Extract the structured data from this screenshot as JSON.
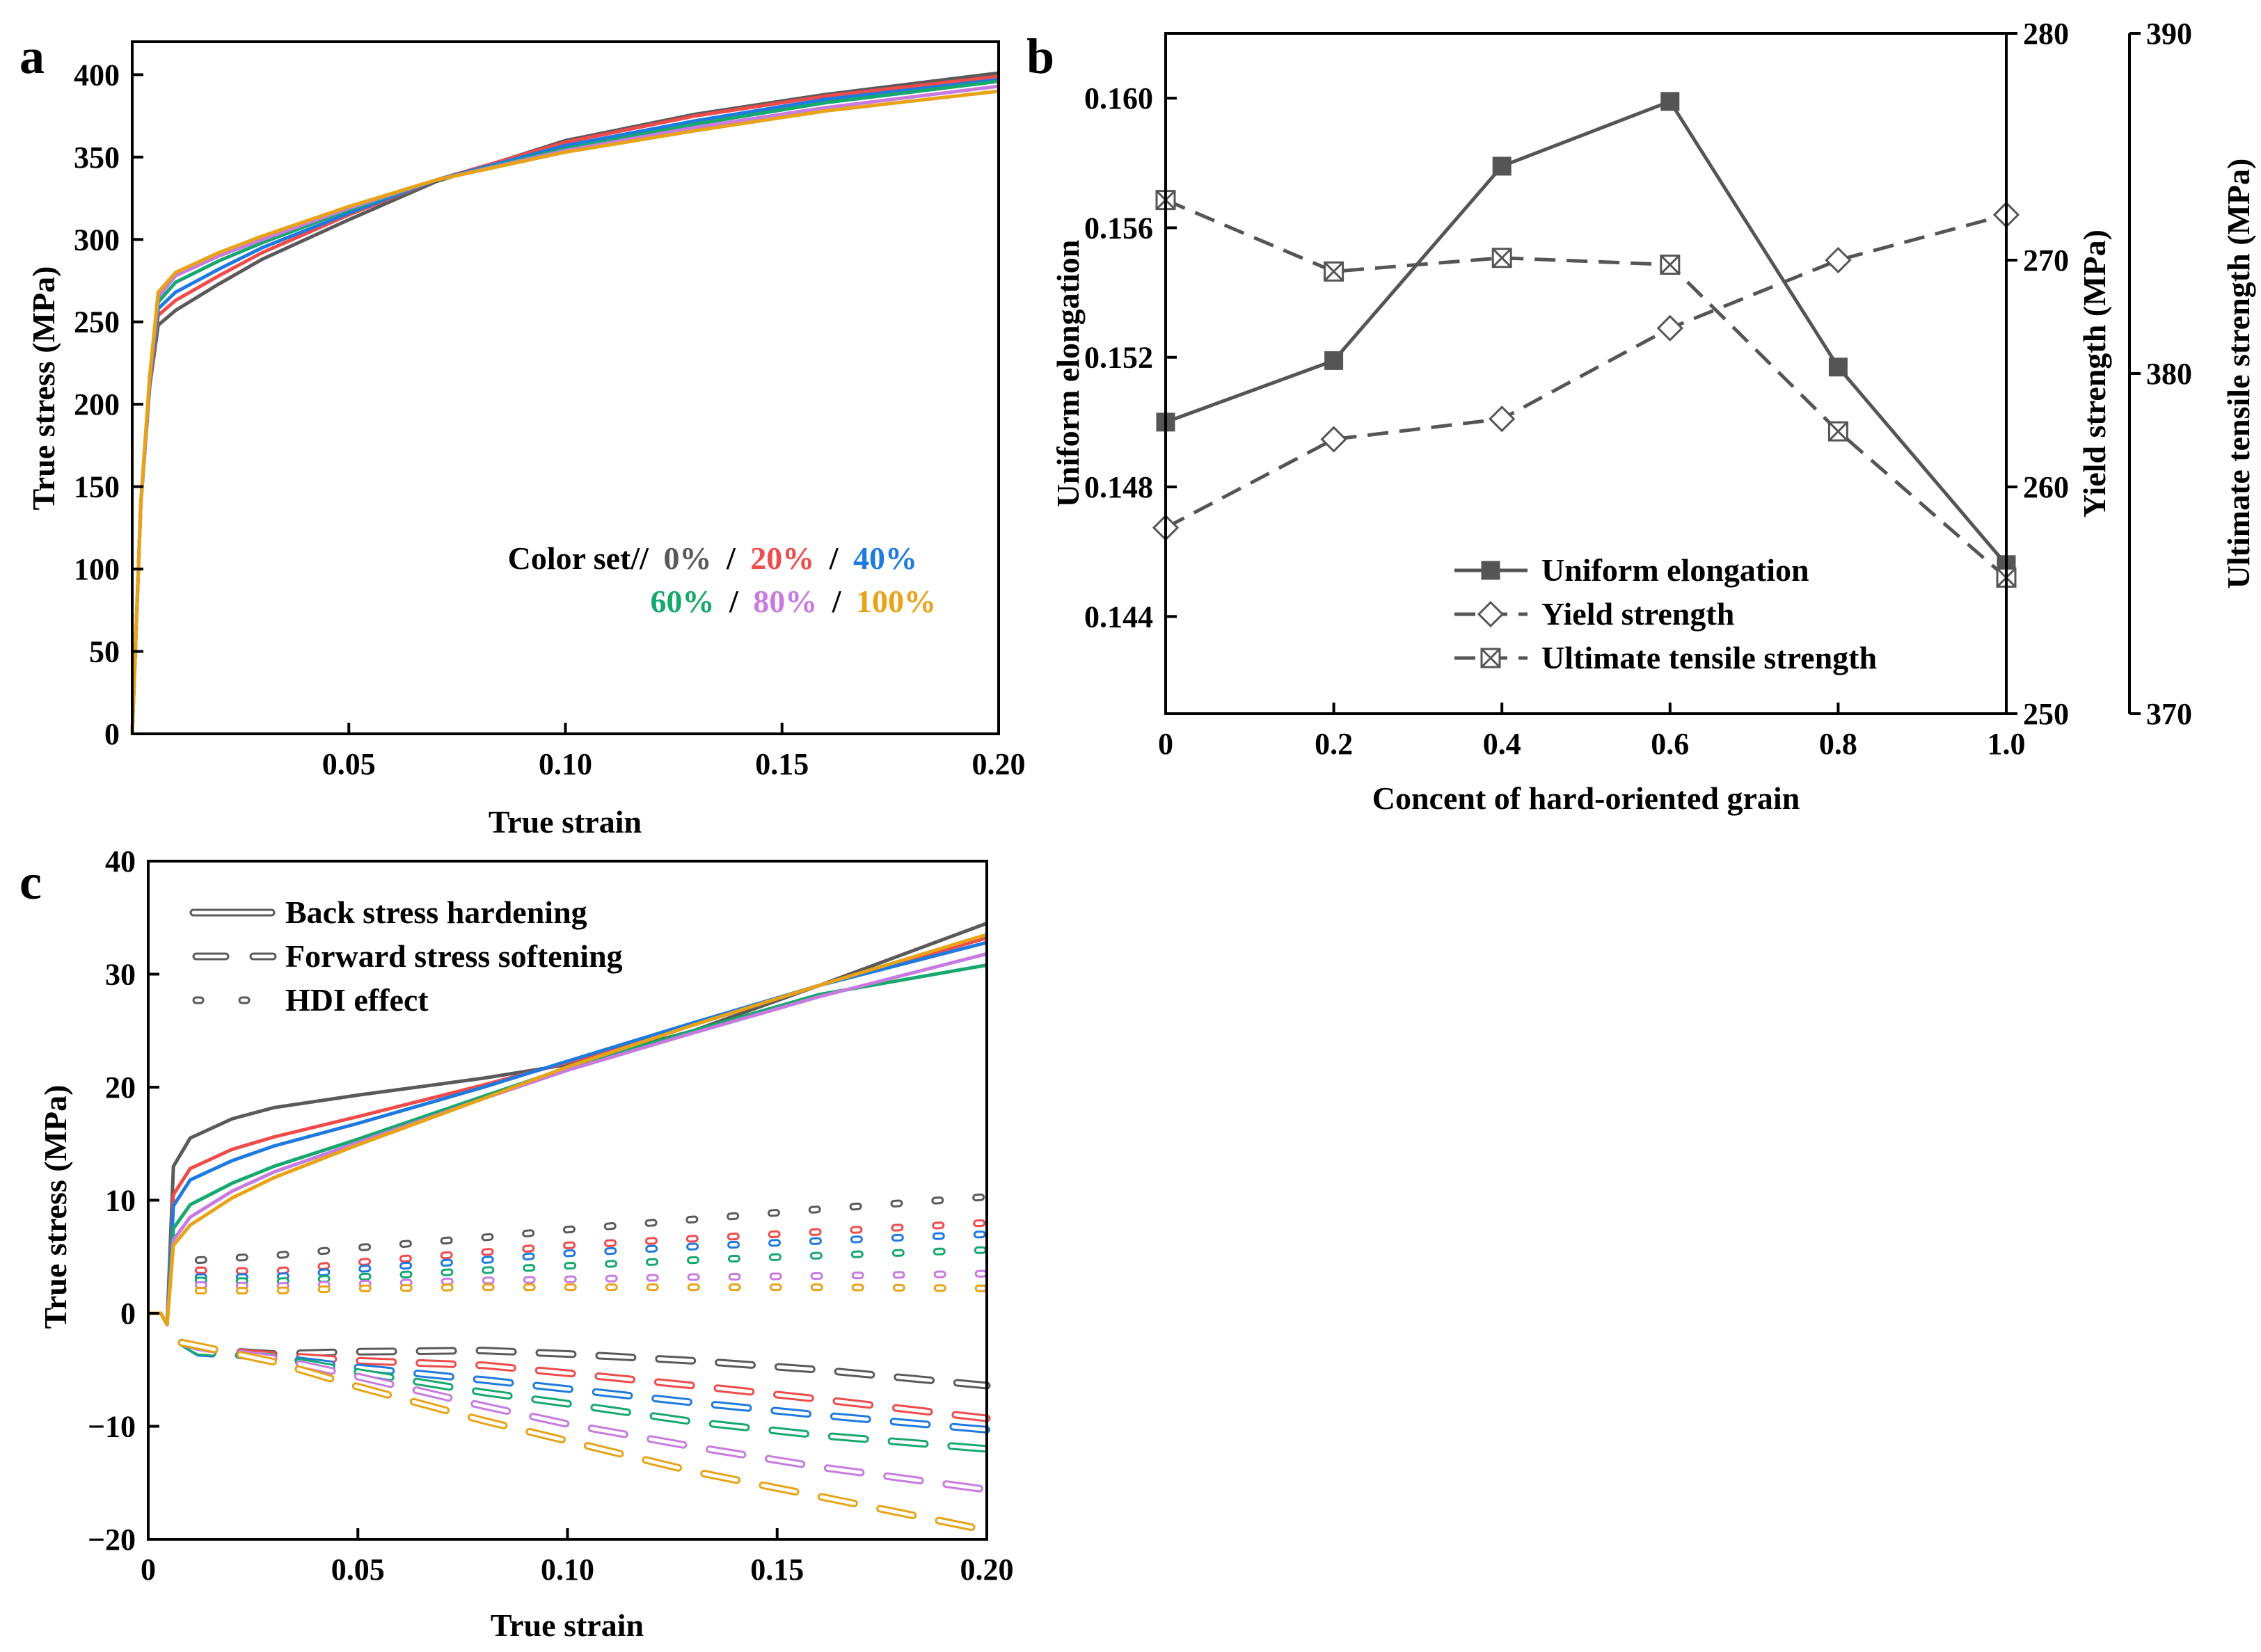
{
  "panels": {
    "a": {
      "letter": "a",
      "legend_prefix": "Color set//",
      "legend_sep": "/"
    },
    "b": {
      "letter": "b"
    },
    "c": {
      "letter": "c"
    }
  },
  "colors": {
    "0%": "#5a5a5a",
    "20%": "#ef4b4b",
    "40%": "#1f7ae0",
    "60%": "#17a86e",
    "80%": "#c77be0",
    "100%": "#e8a317",
    "gray": "#555555"
  },
  "chart_data": [
    {
      "id": "a",
      "type": "line",
      "xlabel": "True strain",
      "ylabel": "True stress (MPa)",
      "xlim": [
        0,
        0.2
      ],
      "ylim": [
        0,
        420
      ],
      "xticks": [
        "0.05",
        "0.10",
        "0.15",
        "0.20"
      ],
      "xtick_values": [
        0.05,
        0.1,
        0.15,
        0.2
      ],
      "yticks": [
        "0",
        "50",
        "100",
        "150",
        "200",
        "250",
        "300",
        "350",
        "400"
      ],
      "ytick_values": [
        0,
        50,
        100,
        150,
        200,
        250,
        300,
        350,
        400
      ],
      "series": [
        {
          "name": "0%",
          "x": [
            0,
            0.002,
            0.004,
            0.006,
            0.01,
            0.02,
            0.03,
            0.05,
            0.07,
            0.1,
            0.13,
            0.16,
            0.2
          ],
          "y": [
            0,
            140,
            210,
            248,
            257,
            273,
            288,
            312,
            335,
            360,
            376,
            388,
            401
          ]
        },
        {
          "name": "20%",
          "x": [
            0,
            0.002,
            0.004,
            0.006,
            0.01,
            0.02,
            0.03,
            0.05,
            0.07,
            0.1,
            0.13,
            0.16,
            0.2
          ],
          "y": [
            0,
            140,
            210,
            254,
            263,
            278,
            292,
            315,
            336,
            359,
            375,
            387,
            399
          ]
        },
        {
          "name": "40%",
          "x": [
            0,
            0.002,
            0.004,
            0.006,
            0.01,
            0.02,
            0.03,
            0.05,
            0.07,
            0.1,
            0.13,
            0.16,
            0.2
          ],
          "y": [
            0,
            140,
            212,
            258,
            268,
            282,
            295,
            316,
            336,
            357,
            372,
            385,
            397
          ]
        },
        {
          "name": "60%",
          "x": [
            0,
            0.002,
            0.004,
            0.006,
            0.01,
            0.02,
            0.03,
            0.05,
            0.07,
            0.1,
            0.13,
            0.16,
            0.2
          ],
          "y": [
            0,
            140,
            214,
            262,
            274,
            287,
            298,
            318,
            336,
            355,
            370,
            383,
            396
          ]
        },
        {
          "name": "80%",
          "x": [
            0,
            0.002,
            0.004,
            0.006,
            0.01,
            0.02,
            0.03,
            0.05,
            0.07,
            0.1,
            0.13,
            0.16,
            0.2
          ],
          "y": [
            0,
            140,
            215,
            265,
            278,
            290,
            300,
            319,
            336,
            354,
            368,
            380,
            393
          ]
        },
        {
          "name": "100%",
          "x": [
            0,
            0.002,
            0.004,
            0.006,
            0.01,
            0.02,
            0.03,
            0.05,
            0.07,
            0.1,
            0.13,
            0.16,
            0.2
          ],
          "y": [
            0,
            140,
            216,
            268,
            280,
            292,
            302,
            320,
            336,
            353,
            366,
            378,
            390
          ]
        }
      ],
      "legend": {
        "placement": "lower-right",
        "labels": [
          "0%",
          "20%",
          "40%",
          "60%",
          "80%",
          "100%"
        ]
      }
    },
    {
      "id": "b",
      "type": "line",
      "xlabel": "Concent of hard-oriented grain",
      "ylabel": "Uniform elongation",
      "ylabel_right": "Yield strength (MPa)",
      "ylabel_right2": "Ultimate tensile strength (MPa)",
      "x": [
        0,
        0.2,
        0.4,
        0.6,
        0.8,
        1.0
      ],
      "xlim": [
        0,
        1.0
      ],
      "xticks": [
        "0",
        "0.2",
        "0.4",
        "0.6",
        "0.8",
        "1.0"
      ],
      "xtick_values": [
        0,
        0.2,
        0.4,
        0.6,
        0.8,
        1.0
      ],
      "ylim": [
        0.141,
        0.162
      ],
      "yticks": [
        "0.144",
        "0.148",
        "0.152",
        "0.156",
        "0.160"
      ],
      "ytick_values": [
        0.144,
        0.148,
        0.152,
        0.156,
        0.16
      ],
      "ylim_right": [
        250,
        280
      ],
      "yticks_right": [
        "250",
        "260",
        "270",
        "280"
      ],
      "ytick_values_right": [
        250,
        260,
        270,
        280
      ],
      "ylim_right2": [
        370,
        390
      ],
      "yticks_right2": [
        "370",
        "380",
        "390"
      ],
      "ytick_values_right2": [
        370,
        380,
        390
      ],
      "series": [
        {
          "name": "Uniform elongation",
          "axis": "left",
          "marker": "filled-square",
          "style": "solid",
          "values": [
            0.15,
            0.1519,
            0.1579,
            0.1599,
            0.1517,
            0.1456
          ]
        },
        {
          "name": "Yield strength",
          "axis": "right",
          "marker": "open-diamond",
          "style": "dashed",
          "values": [
            258.2,
            262.1,
            263.0,
            267.0,
            270.0,
            272.0
          ]
        },
        {
          "name": "Ultimate tensile strength",
          "axis": "right2",
          "marker": "crossed-square",
          "style": "dashed",
          "values": [
            385.1,
            383.0,
            383.4,
            383.2,
            378.3,
            374.0
          ]
        }
      ],
      "legend": {
        "placement": "bottom-center",
        "labels": [
          "Uniform elongation",
          "Yield strength",
          "Ultimate tensile strength"
        ]
      }
    },
    {
      "id": "c",
      "type": "line",
      "xlabel": "True strain",
      "ylabel": "True stress (MPa)",
      "xlim": [
        0,
        0.2
      ],
      "ylim": [
        -20,
        40
      ],
      "xticks": [
        "0",
        "0.05",
        "0.10",
        "0.15",
        "0.20"
      ],
      "xtick_values": [
        0,
        0.05,
        0.1,
        0.15,
        0.2
      ],
      "yticks": [
        "−20",
        "−10",
        "0",
        "10",
        "20",
        "30",
        "40"
      ],
      "ytick_values": [
        -20,
        -10,
        0,
        10,
        20,
        30,
        40
      ],
      "groups": [
        {
          "name": "Back stress hardening",
          "style": "solid",
          "series": [
            {
              "name": "0%",
              "x": [
                0,
                0.003,
                0.0045,
                0.006,
                0.01,
                0.02,
                0.03,
                0.05,
                0.08,
                0.1,
                0.13,
                0.16,
                0.2
              ],
              "y": [
                0,
                0,
                -1,
                13,
                15.5,
                17.2,
                18.2,
                19.3,
                20.8,
                22.0,
                25.0,
                29.0,
                34.5
              ]
            },
            {
              "name": "20%",
              "x": [
                0,
                0.003,
                0.0045,
                0.006,
                0.01,
                0.02,
                0.03,
                0.05,
                0.08,
                0.1,
                0.13,
                0.16,
                0.2
              ],
              "y": [
                0,
                0,
                -1,
                10.5,
                12.8,
                14.5,
                15.6,
                17.4,
                20.2,
                22.2,
                25.5,
                29.0,
                33.2
              ]
            },
            {
              "name": "40%",
              "x": [
                0,
                0.003,
                0.0045,
                0.006,
                0.01,
                0.02,
                0.03,
                0.05,
                0.08,
                0.1,
                0.13,
                0.16,
                0.2
              ],
              "y": [
                0,
                0,
                -1,
                9.5,
                11.8,
                13.5,
                14.8,
                16.8,
                20.0,
                22.3,
                25.7,
                29.0,
                32.8
              ]
            },
            {
              "name": "60%",
              "x": [
                0,
                0.003,
                0.0045,
                0.006,
                0.01,
                0.02,
                0.03,
                0.05,
                0.08,
                0.1,
                0.13,
                0.16,
                0.2
              ],
              "y": [
                0,
                0,
                -1,
                7.5,
                9.6,
                11.5,
                13.0,
                15.4,
                19.2,
                21.7,
                25.0,
                28.2,
                30.8
              ]
            },
            {
              "name": "80%",
              "x": [
                0,
                0.003,
                0.0045,
                0.006,
                0.01,
                0.02,
                0.03,
                0.05,
                0.08,
                0.1,
                0.13,
                0.16,
                0.2
              ],
              "y": [
                0,
                0,
                -1,
                6.5,
                8.5,
                10.8,
                12.5,
                15.1,
                19.0,
                21.5,
                24.8,
                28.0,
                31.8
              ]
            },
            {
              "name": "100%",
              "x": [
                0,
                0.003,
                0.0045,
                0.006,
                0.01,
                0.02,
                0.03,
                0.05,
                0.08,
                0.1,
                0.13,
                0.16,
                0.2
              ],
              "y": [
                0,
                0,
                -1,
                6.0,
                7.8,
                10.2,
                12.0,
                14.9,
                19.0,
                21.8,
                25.5,
                29.0,
                33.5
              ]
            }
          ]
        },
        {
          "name": "Forward stress softening",
          "style": "long-dash",
          "series": [
            {
              "name": "0%",
              "x": [
                0.008,
                0.012,
                0.03,
                0.05,
                0.08,
                0.1,
                0.13,
                0.16,
                0.2
              ],
              "y": [
                -2.6,
                -3.2,
                -3.6,
                -3.4,
                -3.3,
                -3.6,
                -4.2,
                -5.0,
                -6.4
              ]
            },
            {
              "name": "20%",
              "x": [
                0.008,
                0.012,
                0.03,
                0.05,
                0.08,
                0.1,
                0.13,
                0.16,
                0.2
              ],
              "y": [
                -2.6,
                -3.2,
                -3.7,
                -4.2,
                -4.6,
                -5.3,
                -6.4,
                -7.6,
                -9.3
              ]
            },
            {
              "name": "40%",
              "x": [
                0.008,
                0.012,
                0.03,
                0.05,
                0.08,
                0.1,
                0.13,
                0.16,
                0.2
              ],
              "y": [
                -2.6,
                -3.5,
                -3.9,
                -4.8,
                -5.9,
                -6.7,
                -7.9,
                -9.0,
                -10.3
              ]
            },
            {
              "name": "60%",
              "x": [
                0.008,
                0.012,
                0.03,
                0.05,
                0.08,
                0.1,
                0.13,
                0.16,
                0.2
              ],
              "y": [
                -2.6,
                -3.4,
                -3.9,
                -5.2,
                -7.0,
                -8.0,
                -9.6,
                -10.8,
                -12.0
              ]
            },
            {
              "name": "80%",
              "x": [
                0.008,
                0.012,
                0.03,
                0.05,
                0.08,
                0.1,
                0.13,
                0.16,
                0.2
              ],
              "y": [
                -2.6,
                -3.0,
                -4.0,
                -5.6,
                -8.2,
                -9.8,
                -11.8,
                -13.6,
                -15.6
              ]
            },
            {
              "name": "100%",
              "x": [
                0.008,
                0.012,
                0.03,
                0.05,
                0.08,
                0.1,
                0.13,
                0.16,
                0.2
              ],
              "y": [
                -2.6,
                -2.9,
                -4.3,
                -6.5,
                -9.5,
                -11.3,
                -14.0,
                -16.2,
                -19.2
              ]
            }
          ]
        },
        {
          "name": "HDI effect",
          "style": "dotted",
          "series": [
            {
              "name": "0%",
              "x": [
                0.012,
                0.03,
                0.05,
                0.08,
                0.1,
                0.13,
                0.16,
                0.2
              ],
              "y": [
                4.7,
                5.1,
                5.8,
                6.7,
                7.4,
                8.3,
                9.2,
                10.3
              ]
            },
            {
              "name": "20%",
              "x": [
                0.012,
                0.03,
                0.05,
                0.08,
                0.1,
                0.13,
                0.16,
                0.2
              ],
              "y": [
                3.8,
                3.7,
                4.5,
                5.4,
                6.0,
                6.6,
                7.2,
                8.0
              ]
            },
            {
              "name": "40%",
              "x": [
                0.012,
                0.03,
                0.05,
                0.08,
                0.1,
                0.13,
                0.16,
                0.2
              ],
              "y": [
                3.2,
                3.2,
                3.9,
                4.7,
                5.3,
                5.9,
                6.4,
                7.0
              ]
            },
            {
              "name": "60%",
              "x": [
                0.012,
                0.03,
                0.05,
                0.08,
                0.1,
                0.13,
                0.16,
                0.2
              ],
              "y": [
                2.9,
                2.8,
                3.2,
                3.8,
                4.2,
                4.7,
                5.1,
                5.6
              ]
            },
            {
              "name": "80%",
              "x": [
                0.012,
                0.03,
                0.05,
                0.08,
                0.1,
                0.13,
                0.16,
                0.2
              ],
              "y": [
                2.5,
                2.4,
                2.6,
                2.9,
                3.0,
                3.2,
                3.3,
                3.5
              ]
            },
            {
              "name": "100%",
              "x": [
                0.012,
                0.03,
                0.05,
                0.08,
                0.1,
                0.13,
                0.16,
                0.2
              ],
              "y": [
                2.0,
                2.0,
                2.2,
                2.3,
                2.3,
                2.3,
                2.3,
                2.2
              ]
            }
          ]
        }
      ],
      "legend": {
        "placement": "top-left",
        "labels": [
          "Back stress hardening",
          "Forward stress softening",
          "HDI effect"
        ]
      }
    }
  ]
}
